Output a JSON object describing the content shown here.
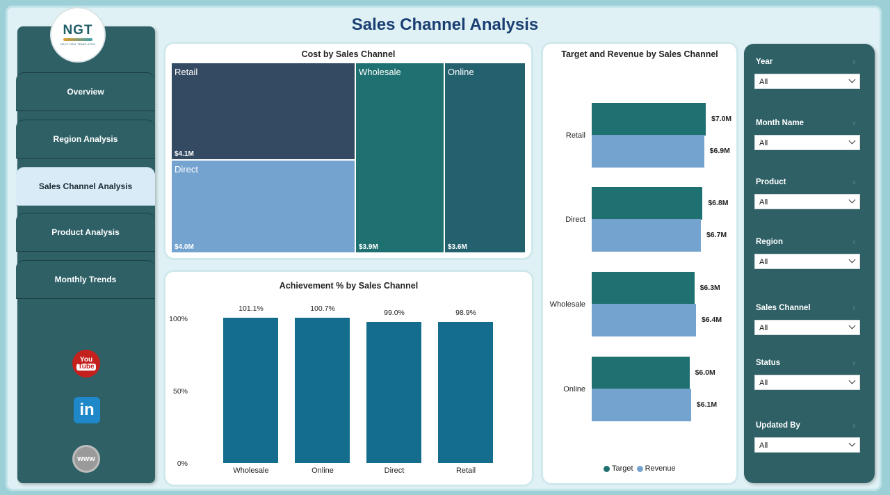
{
  "title": "Sales Channel Analysis",
  "logo": {
    "mark": "NGT",
    "subtitle": "NEXT GEN TEMPLATES"
  },
  "nav": [
    {
      "label": "Overview"
    },
    {
      "label": "Region Analysis"
    },
    {
      "label": "Sales Channel Analysis"
    },
    {
      "label": "Product Analysis"
    },
    {
      "label": "Monthly Trends"
    }
  ],
  "social": {
    "youtube_top": "You",
    "youtube_bottom": "Tube",
    "linkedin": "in",
    "web": "www"
  },
  "colors": {
    "accent": "#2e6066",
    "target": "#1f7070",
    "revenue": "#74a3cf",
    "achievement_bar": "#146d8c"
  },
  "cost_chart": {
    "title": "Cost by Sales Channel",
    "cells": [
      {
        "label": "Retail",
        "value": "$4.1M",
        "color": "#344a62"
      },
      {
        "label": "Direct",
        "value": "$4.0M",
        "color": "#74a3cf"
      },
      {
        "label": "Wholesale",
        "value": "$3.9M",
        "color": "#1f7070"
      },
      {
        "label": "Online",
        "value": "$3.6M",
        "color": "#23616e"
      }
    ]
  },
  "achievement_chart": {
    "title": "Achievement % by Sales Channel",
    "y_ticks": [
      "100%",
      "50%",
      "0%"
    ]
  },
  "target_revenue_chart": {
    "title": "Target and Revenue by Sales Channel",
    "legend": [
      "Target",
      "Revenue"
    ]
  },
  "chart_data": [
    {
      "type": "treemap",
      "title": "Cost by Sales Channel",
      "categories": [
        "Retail",
        "Direct",
        "Wholesale",
        "Online"
      ],
      "values": [
        4.1,
        4.0,
        3.9,
        3.6
      ],
      "unit": "$M"
    },
    {
      "type": "bar",
      "title": "Achievement % by Sales Channel",
      "categories": [
        "Wholesale",
        "Online",
        "Direct",
        "Retail"
      ],
      "values": [
        101.1,
        100.7,
        99.0,
        98.9
      ],
      "value_labels": [
        "101.1%",
        "100.7%",
        "99.0%",
        "98.9%"
      ],
      "ylim": [
        0,
        100
      ]
    },
    {
      "type": "bar",
      "orientation": "horizontal",
      "title": "Target and Revenue by Sales Channel",
      "categories": [
        "Retail",
        "Direct",
        "Wholesale",
        "Online"
      ],
      "series": [
        {
          "name": "Target",
          "values": [
            7.0,
            6.8,
            6.3,
            6.0
          ],
          "labels": [
            "$7.0M",
            "$6.8M",
            "$6.3M",
            "$6.0M"
          ]
        },
        {
          "name": "Revenue",
          "values": [
            6.9,
            6.7,
            6.4,
            6.1
          ],
          "labels": [
            "$6.9M",
            "$6.7M",
            "$6.4M",
            "$6.1M"
          ]
        }
      ]
    }
  ],
  "filters": [
    {
      "label": "Year",
      "value": "All"
    },
    {
      "label": "Month Name",
      "value": "All"
    },
    {
      "label": "Product",
      "value": "All"
    },
    {
      "label": "Region",
      "value": "All"
    },
    {
      "label": "Sales Channel",
      "value": "All"
    },
    {
      "label": "Status",
      "value": "All"
    },
    {
      "label": "Updated By",
      "value": "All"
    }
  ]
}
